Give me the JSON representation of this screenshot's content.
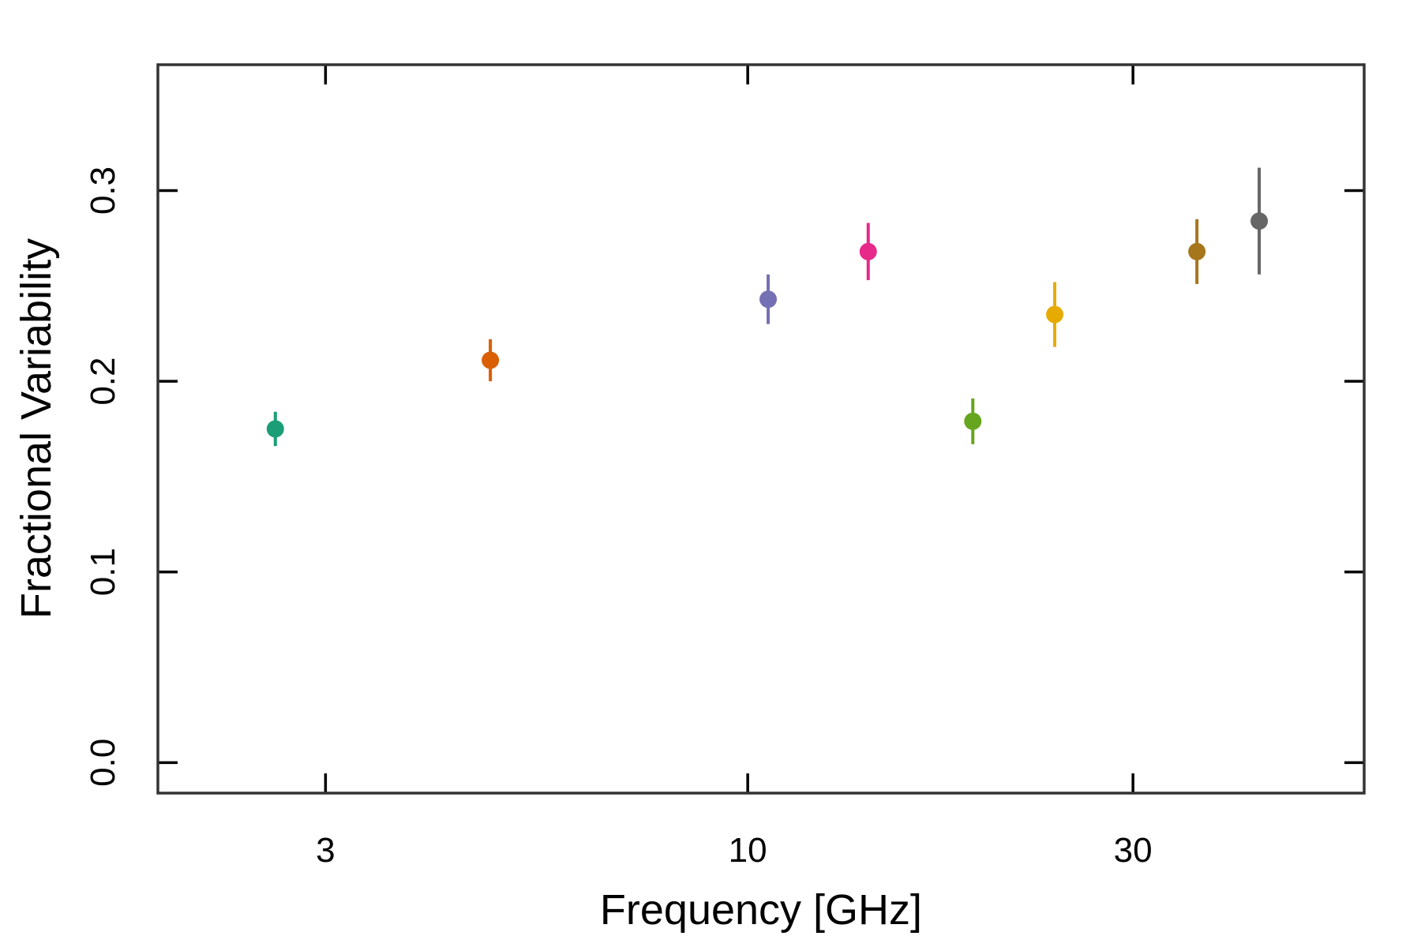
{
  "chart_data": {
    "type": "scatter",
    "title": "",
    "xlabel": "Frequency [GHz]",
    "ylabel": "Fractional Variability",
    "x_scale": "log",
    "xlim": [
      1.86,
      58
    ],
    "ylim": [
      -0.016,
      0.366
    ],
    "x_ticks": [
      {
        "value": 3,
        "label": "3"
      },
      {
        "value": 10,
        "label": "10"
      },
      {
        "value": 30,
        "label": "30"
      }
    ],
    "y_ticks": [
      {
        "value": 0.0,
        "label": "0.0"
      },
      {
        "value": 0.1,
        "label": "0.1"
      },
      {
        "value": 0.2,
        "label": "0.2"
      },
      {
        "value": 0.3,
        "label": "0.3"
      }
    ],
    "grid": false,
    "legend": "none",
    "points": [
      {
        "x": 2.6,
        "y": 0.175,
        "err": 0.009,
        "color": "#1b9e77"
      },
      {
        "x": 4.8,
        "y": 0.211,
        "err": 0.011,
        "color": "#d95f02"
      },
      {
        "x": 10.6,
        "y": 0.243,
        "err": 0.013,
        "color": "#7570b3"
      },
      {
        "x": 14.1,
        "y": 0.268,
        "err": 0.015,
        "color": "#e7298a"
      },
      {
        "x": 19.0,
        "y": 0.179,
        "err": 0.012,
        "color": "#66a61e"
      },
      {
        "x": 24.0,
        "y": 0.235,
        "err": 0.017,
        "color": "#e6ab02"
      },
      {
        "x": 36.0,
        "y": 0.268,
        "err": 0.017,
        "color": "#a6761d"
      },
      {
        "x": 43.0,
        "y": 0.284,
        "err": 0.028,
        "color": "#666666"
      }
    ]
  }
}
